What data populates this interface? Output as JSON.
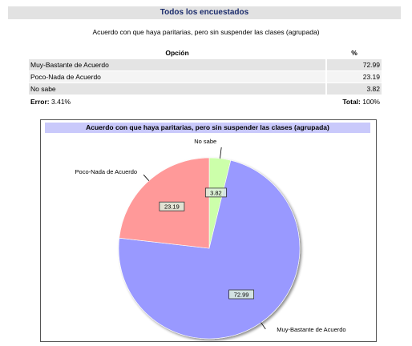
{
  "header": {
    "title": "Todos los encuestados"
  },
  "question": "Acuerdo con que haya paritarias, pero sin suspender las clases (agrupada)",
  "table": {
    "col_option": "Opción",
    "col_pct": "%",
    "rows": [
      {
        "option": "Muy-Bastante de Acuerdo",
        "pct": "72.99"
      },
      {
        "option": "Poco-Nada de Acuerdo",
        "pct": "23.19"
      },
      {
        "option": "No sabe",
        "pct": "3.82"
      }
    ],
    "error_label": "Error:",
    "error_value": "3.41%",
    "total_label": "Total:",
    "total_value": "100%"
  },
  "chart_data": {
    "type": "pie",
    "title": "Acuerdo con que haya paritarias, pero sin suspender las clases (agrupada)",
    "slices": [
      {
        "label": "No sabe",
        "value": 3.82,
        "color": "#ccffaa"
      },
      {
        "label": "Muy-Bastante de Acuerdo",
        "value": 72.99,
        "color": "#9999ff"
      },
      {
        "label": "Poco-Nada de Acuerdo",
        "value": 23.19,
        "color": "#ff9999"
      }
    ],
    "data_labels": [
      "3.82",
      "72.99",
      "23.19"
    ]
  }
}
